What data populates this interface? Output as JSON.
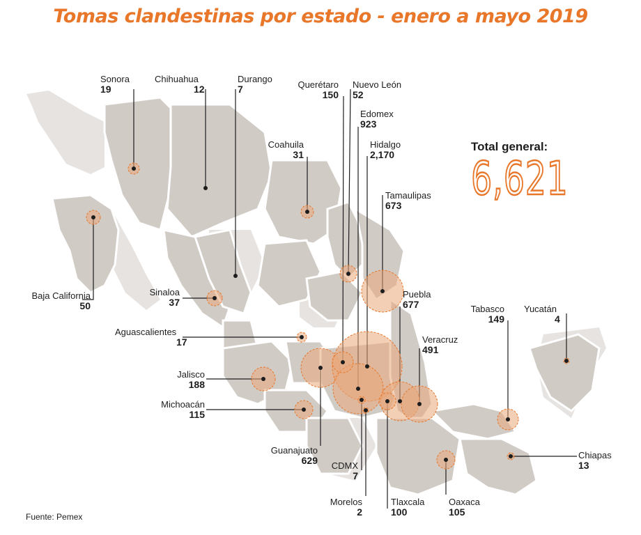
{
  "title": "Tomas clandestinas por estado - enero a mayo 2019",
  "total": {
    "label": "Total general:",
    "value": "6,621"
  },
  "source": "Fuente: Pemex",
  "colors": {
    "accent": "#e8772a",
    "land": "#d1cbc6",
    "land_light": "#e6e3e1",
    "circle": "#e9a77a"
  },
  "states": [
    {
      "id": "sonora",
      "name": "Sonora",
      "value": "19"
    },
    {
      "id": "chihuahua",
      "name": "Chihuahua",
      "value": "12"
    },
    {
      "id": "durango",
      "name": "Durango",
      "value": "7"
    },
    {
      "id": "queretaro",
      "name": "Querétaro",
      "value": "150"
    },
    {
      "id": "nuevo-leon",
      "name": "Nuevo León",
      "value": "52"
    },
    {
      "id": "edomex",
      "name": "Edomex",
      "value": "923"
    },
    {
      "id": "hidalgo",
      "name": "Hidalgo",
      "value": "2,170"
    },
    {
      "id": "coahuila",
      "name": "Coahuila",
      "value": "31"
    },
    {
      "id": "tamaulipas",
      "name": "Tamaulipas",
      "value": "673"
    },
    {
      "id": "baja-california",
      "name": "Baja California",
      "value": "50"
    },
    {
      "id": "sinaloa",
      "name": "Sinaloa",
      "value": "37"
    },
    {
      "id": "puebla",
      "name": "Puebla",
      "value": "677"
    },
    {
      "id": "tabasco",
      "name": "Tabasco",
      "value": "149"
    },
    {
      "id": "yucatan",
      "name": "Yucatán",
      "value": "4"
    },
    {
      "id": "aguascalientes",
      "name": "Aguascalientes",
      "value": "17"
    },
    {
      "id": "veracruz",
      "name": "Veracruz",
      "value": "491"
    },
    {
      "id": "jalisco",
      "name": "Jalisco",
      "value": "188"
    },
    {
      "id": "michoacan",
      "name": "Michoacán",
      "value": "115"
    },
    {
      "id": "chiapas",
      "name": "Chiapas",
      "value": "13"
    },
    {
      "id": "guanajuato",
      "name": "Guanajuato",
      "value": "629"
    },
    {
      "id": "cdmx",
      "name": "CDMX",
      "value": "7"
    },
    {
      "id": "morelos",
      "name": "Morelos",
      "value": "2"
    },
    {
      "id": "tlaxcala",
      "name": "Tlaxcala",
      "value": "100"
    },
    {
      "id": "oaxaca",
      "name": "Oaxaca",
      "value": "105"
    }
  ]
}
